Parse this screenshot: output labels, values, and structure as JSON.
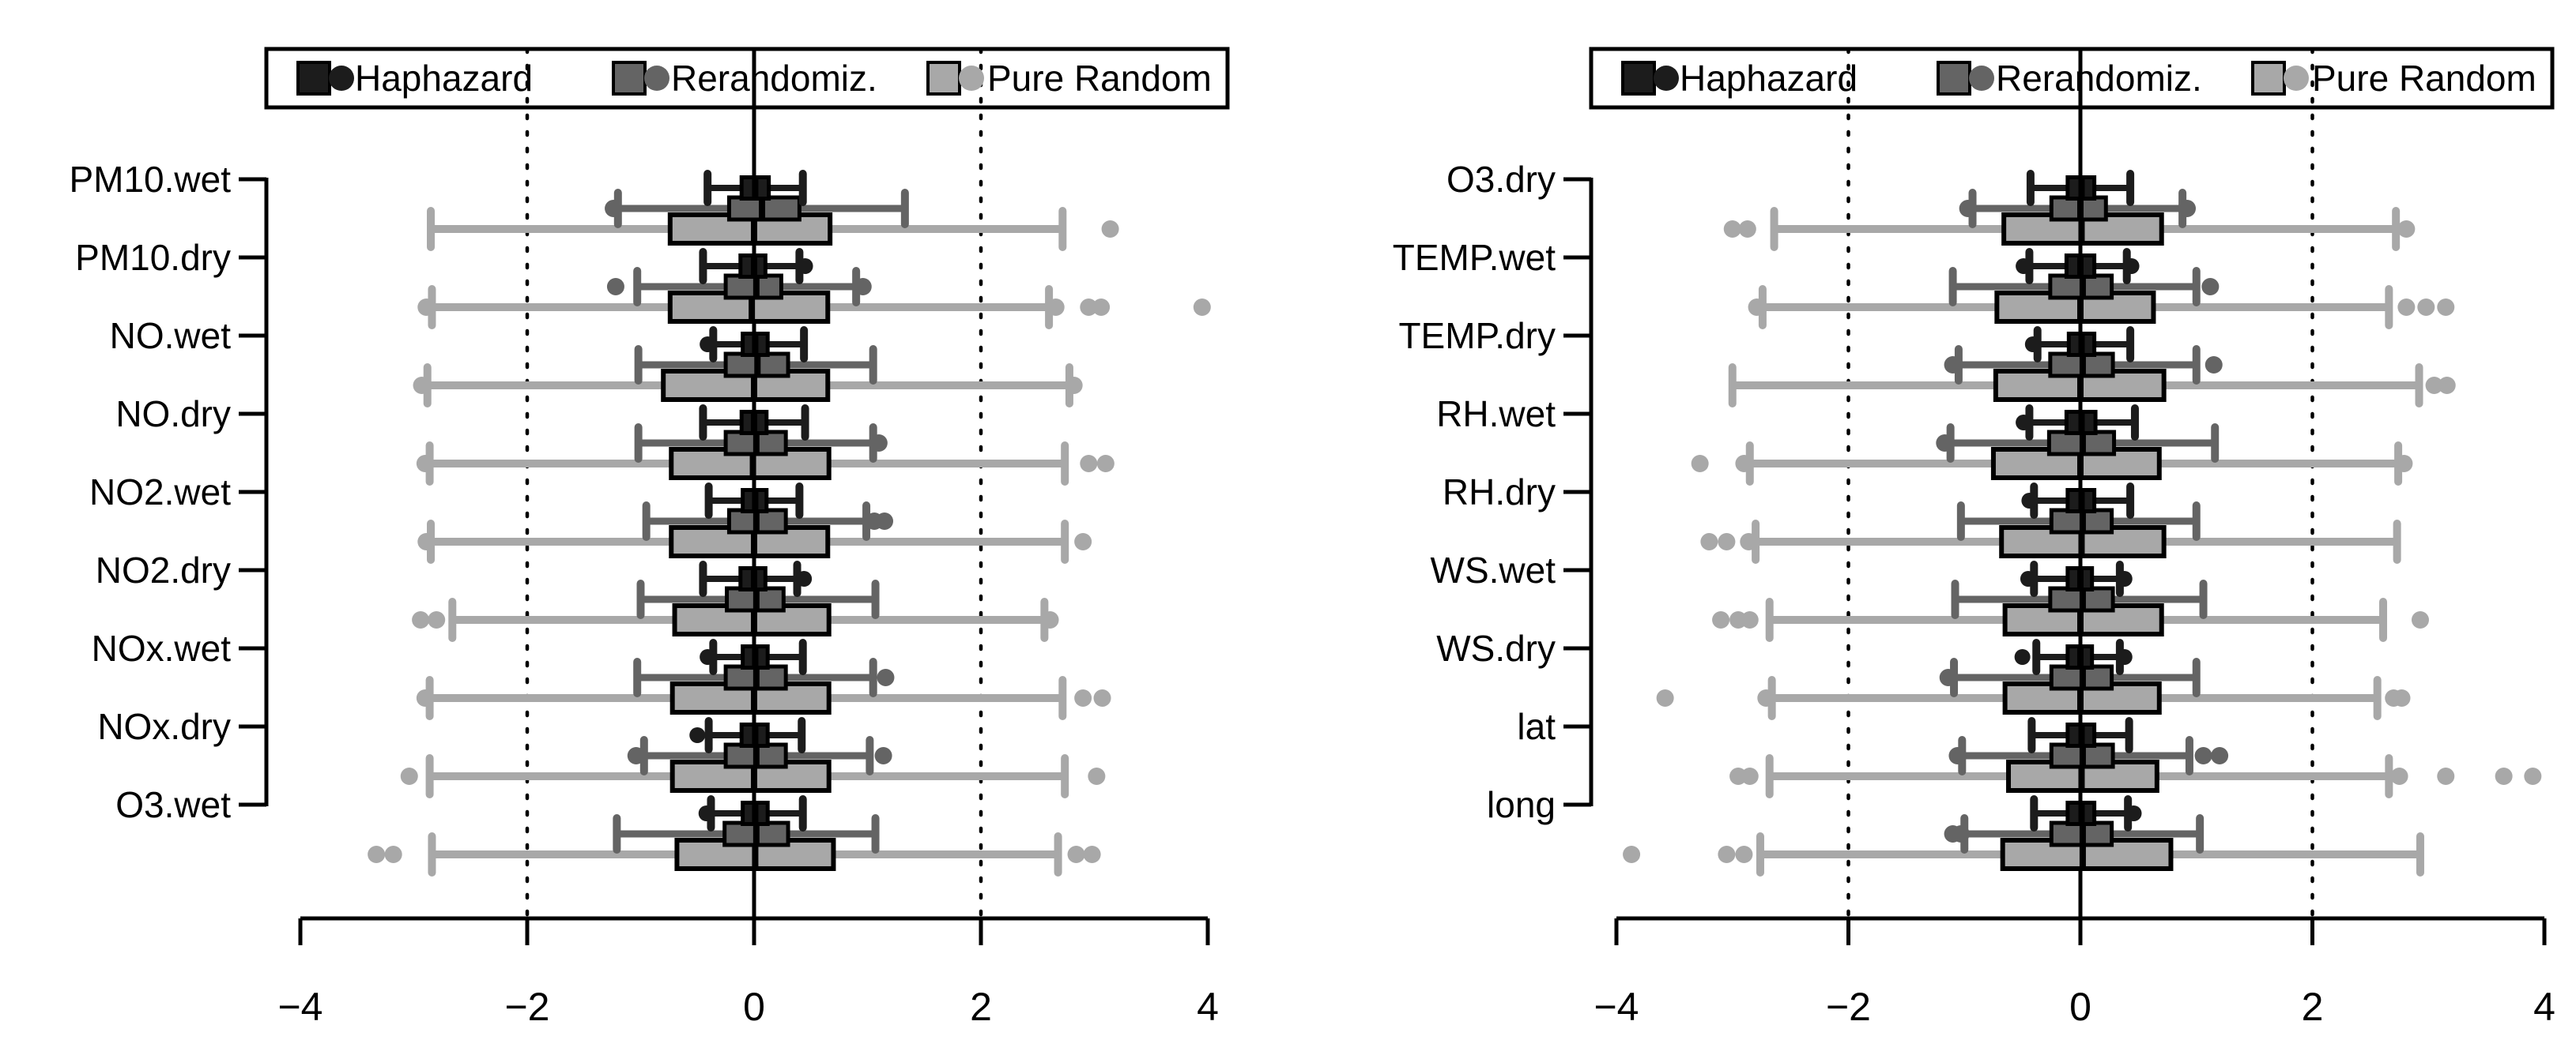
{
  "figure": {
    "background": "#ffffff"
  },
  "legend": {
    "items": [
      {
        "key": "hap",
        "label": "Haphazard"
      },
      {
        "key": "rer",
        "label": "Rerandomiz."
      },
      {
        "key": "pur",
        "label": "Pure Random"
      }
    ]
  },
  "chart_data": {
    "type": "boxplot",
    "orientation": "horizontal",
    "title": "",
    "xlabel": "",
    "ylabel": "",
    "x_ticks": [
      -4,
      -2,
      0,
      2,
      4
    ],
    "xlim": [
      -4.4,
      4.4
    ],
    "grid": "off",
    "reference_lines": {
      "solid": [
        0
      ],
      "dotted": [
        -2,
        2
      ]
    },
    "legend_position": "top-inside-box",
    "series_names": {
      "hap": "Haphazard",
      "rer": "Rerandomiz.",
      "pur": "Pure Random"
    },
    "series_colors": {
      "hap": "#1c1c1c",
      "rer": "#646464",
      "pur": "#a8a8a8"
    },
    "stats_format": [
      "whisker_low",
      "q1",
      "median",
      "q3",
      "whisker_high",
      "outliers"
    ],
    "panels": [
      {
        "name": "left",
        "rows": [
          {
            "label": "PM10.wet",
            "hap": [
              -0.41,
              -0.11,
              0.01,
              0.13,
              0.43,
              []
            ],
            "rer": [
              -1.2,
              -0.22,
              0.07,
              0.4,
              1.33,
              [
                -1.24
              ]
            ],
            "pur": [
              -2.85,
              -0.74,
              0.0,
              0.67,
              2.72,
              [
                3.14
              ]
            ]
          },
          {
            "label": "PM10.dry",
            "hap": [
              -0.45,
              -0.12,
              0.0,
              0.1,
              0.4,
              [
                0.45
              ]
            ],
            "rer": [
              -1.03,
              -0.25,
              0.02,
              0.24,
              0.9,
              [
                -1.22,
                0.96
              ]
            ],
            "pur": [
              -2.84,
              -0.74,
              -0.02,
              0.65,
              2.6,
              [
                -2.89,
                2.66,
                2.95,
                3.06,
                3.95
              ]
            ]
          },
          {
            "label": "NO.wet",
            "hap": [
              -0.36,
              -0.1,
              0.01,
              0.12,
              0.44,
              [
                -0.41
              ]
            ],
            "rer": [
              -1.02,
              -0.25,
              0.03,
              0.3,
              1.05,
              []
            ],
            "pur": [
              -2.88,
              -0.8,
              0.0,
              0.65,
              2.78,
              [
                -2.93,
                2.82
              ]
            ]
          },
          {
            "label": "NO.dry",
            "hap": [
              -0.45,
              -0.11,
              0.0,
              0.11,
              0.45,
              []
            ],
            "rer": [
              -1.02,
              -0.25,
              0.02,
              0.28,
              1.05,
              [
                1.1
              ]
            ],
            "pur": [
              -2.86,
              -0.73,
              -0.01,
              0.66,
              2.74,
              [
                -2.9,
                2.95,
                3.1
              ]
            ]
          },
          {
            "label": "NO2.wet",
            "hap": [
              -0.4,
              -0.1,
              0.01,
              0.11,
              0.4,
              []
            ],
            "rer": [
              -0.95,
              -0.22,
              0.02,
              0.28,
              0.99,
              [
                1.06,
                1.15
              ]
            ],
            "pur": [
              -2.85,
              -0.73,
              0.0,
              0.65,
              2.74,
              [
                -2.89,
                2.9
              ]
            ]
          },
          {
            "label": "NO2.dry",
            "hap": [
              -0.45,
              -0.12,
              0.0,
              0.1,
              0.38,
              [
                0.44
              ]
            ],
            "rer": [
              -1.0,
              -0.24,
              0.02,
              0.26,
              1.07,
              []
            ],
            "pur": [
              -2.66,
              -0.7,
              0.0,
              0.66,
              2.56,
              [
                -2.94,
                -2.8,
                2.61
              ]
            ]
          },
          {
            "label": "NOx.wet",
            "hap": [
              -0.36,
              -0.1,
              0.01,
              0.12,
              0.43,
              [
                -0.41
              ]
            ],
            "rer": [
              -1.03,
              -0.25,
              0.02,
              0.28,
              1.05,
              [
                1.16
              ]
            ],
            "pur": [
              -2.86,
              -0.72,
              0.0,
              0.66,
              2.72,
              [
                -2.9,
                2.9,
                3.07
              ]
            ]
          },
          {
            "label": "NOx.dry",
            "hap": [
              -0.4,
              -0.11,
              0.01,
              0.12,
              0.42,
              [
                -0.5
              ]
            ],
            "rer": [
              -0.97,
              -0.25,
              0.02,
              0.28,
              1.02,
              [
                -1.04,
                1.14
              ]
            ],
            "pur": [
              -2.86,
              -0.72,
              0.0,
              0.66,
              2.74,
              [
                -3.04,
                3.02
              ]
            ]
          },
          {
            "label": "O3.wet",
            "hap": [
              -0.38,
              -0.1,
              0.01,
              0.12,
              0.43,
              [
                -0.42
              ]
            ],
            "rer": [
              -1.21,
              -0.26,
              0.02,
              0.3,
              1.07,
              []
            ],
            "pur": [
              -2.84,
              -0.68,
              0.01,
              0.7,
              2.68,
              [
                -3.33,
                -3.18,
                2.84,
                2.98
              ]
            ]
          }
        ]
      },
      {
        "name": "right",
        "rows": [
          {
            "label": "O3.dry",
            "hap": [
              -0.43,
              -0.11,
              0.01,
              0.12,
              0.43,
              []
            ],
            "rer": [
              -0.93,
              -0.25,
              0.0,
              0.22,
              0.88,
              [
                -0.97,
                0.92
              ]
            ],
            "pur": [
              -2.64,
              -0.66,
              0.01,
              0.7,
              2.72,
              [
                -3.0,
                -2.87,
                2.81
              ]
            ]
          },
          {
            "label": "TEMP.wet",
            "hap": [
              -0.44,
              -0.12,
              0.0,
              0.12,
              0.4,
              [
                -0.49,
                0.44
              ]
            ],
            "rer": [
              -1.1,
              -0.26,
              0.02,
              0.27,
              1.0,
              [
                1.12
              ]
            ],
            "pur": [
              -2.74,
              -0.72,
              0.0,
              0.63,
              2.66,
              [
                -2.79,
                2.81,
                2.98,
                3.15
              ]
            ]
          },
          {
            "label": "TEMP.dry",
            "hap": [
              -0.37,
              -0.1,
              0.01,
              0.12,
              0.43,
              [
                -0.41
              ]
            ],
            "rer": [
              -1.05,
              -0.26,
              0.02,
              0.28,
              1.0,
              [
                -1.1,
                1.15
              ]
            ],
            "pur": [
              -3.0,
              -0.73,
              0.0,
              0.72,
              2.92,
              [
                3.05,
                3.16
              ]
            ]
          },
          {
            "label": "RH.wet",
            "hap": [
              -0.44,
              -0.12,
              0.01,
              0.13,
              0.47,
              [
                -0.49
              ]
            ],
            "rer": [
              -1.12,
              -0.27,
              0.02,
              0.29,
              1.16,
              [
                -1.17
              ]
            ],
            "pur": [
              -2.85,
              -0.75,
              0.0,
              0.68,
              2.74,
              [
                -3.28,
                -2.9,
                2.79
              ]
            ]
          },
          {
            "label": "RH.dry",
            "hap": [
              -0.4,
              -0.11,
              0.01,
              0.12,
              0.43,
              [
                -0.44
              ]
            ],
            "rer": [
              -1.03,
              -0.25,
              0.02,
              0.27,
              1.0,
              []
            ],
            "pur": [
              -2.8,
              -0.68,
              0.01,
              0.72,
              2.73,
              [
                -3.2,
                -3.05,
                -2.86
              ]
            ]
          },
          {
            "label": "WS.wet",
            "hap": [
              -0.4,
              -0.11,
              0.0,
              0.1,
              0.34,
              [
                -0.45,
                0.38
              ]
            ],
            "rer": [
              -1.08,
              -0.26,
              0.02,
              0.28,
              1.06,
              []
            ],
            "pur": [
              -2.68,
              -0.65,
              0.0,
              0.7,
              2.61,
              [
                -3.1,
                -2.95,
                -2.85,
                2.93
              ]
            ]
          },
          {
            "label": "WS.dry",
            "hap": [
              -0.38,
              -0.11,
              0.0,
              0.1,
              0.34,
              [
                -0.5,
                0.38
              ]
            ],
            "rer": [
              -1.09,
              -0.25,
              0.02,
              0.27,
              1.0,
              [
                -1.14
              ]
            ],
            "pur": [
              -2.66,
              -0.65,
              0.0,
              0.68,
              2.56,
              [
                -3.58,
                -2.71,
                2.7,
                2.77
              ]
            ]
          },
          {
            "label": "lat",
            "hap": [
              -0.42,
              -0.11,
              0.01,
              0.12,
              0.42,
              []
            ],
            "rer": [
              -1.02,
              -0.25,
              0.02,
              0.28,
              0.94,
              [
                -1.06,
                1.06,
                1.2
              ]
            ],
            "pur": [
              -2.68,
              -0.62,
              0.01,
              0.66,
              2.66,
              [
                -2.95,
                -2.85,
                2.75,
                3.15,
                3.65,
                3.9
              ]
            ]
          },
          {
            "label": "long",
            "hap": [
              -0.4,
              -0.11,
              0.01,
              0.12,
              0.41,
              [
                0.46
              ]
            ],
            "rer": [
              -1.0,
              -0.25,
              0.02,
              0.27,
              1.03,
              [
                -1.1,
                -1.03
              ]
            ],
            "pur": [
              -2.76,
              -0.67,
              0.02,
              0.78,
              2.93,
              [
                -3.87,
                -3.05,
                -2.9
              ]
            ]
          }
        ]
      }
    ]
  }
}
